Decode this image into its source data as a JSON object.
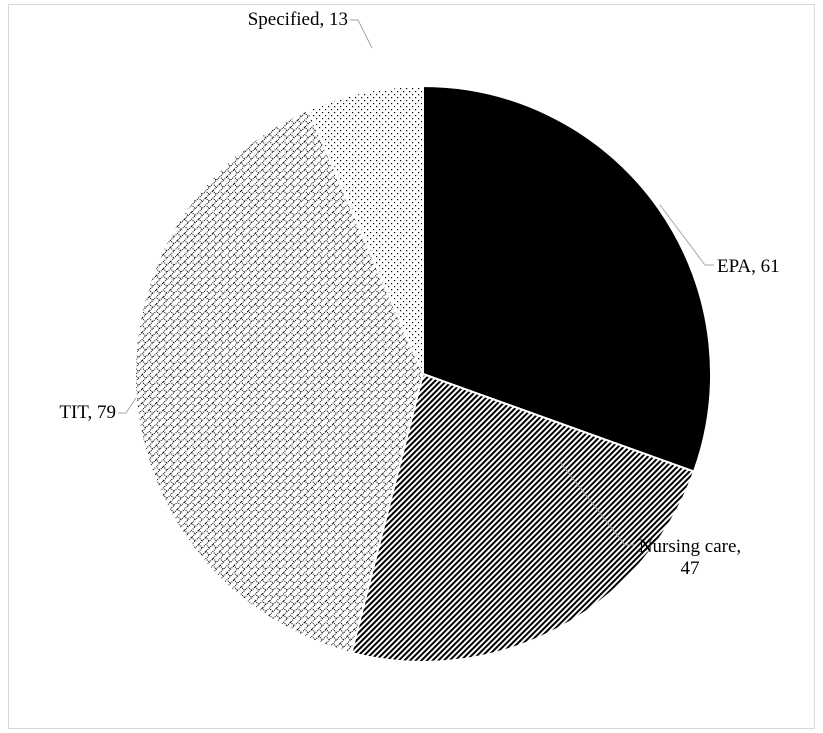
{
  "chart_data": {
    "type": "pie",
    "labels": [
      "EPA, 61",
      "Nursing care, 47",
      "TIT, 79",
      "Specified, 13"
    ],
    "values": [
      61,
      47,
      79,
      13
    ],
    "patterns": [
      "solid",
      "diagonal",
      "brick",
      "dots"
    ],
    "color": "#000000"
  }
}
